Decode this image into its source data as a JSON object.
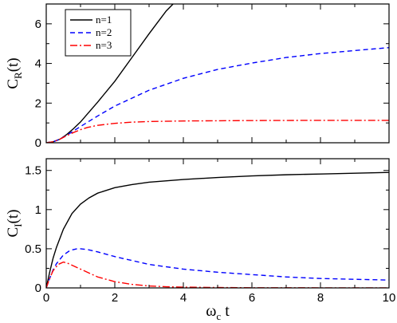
{
  "chart_data": [
    {
      "type": "line",
      "panel": "top",
      "ylabel": {
        "main": "C",
        "sub": "R",
        "suffix": "(t)"
      },
      "xlim": [
        0,
        10
      ],
      "ylim": [
        0,
        7
      ],
      "yticks": [
        0,
        2,
        4,
        6
      ],
      "xticks": [
        0,
        2,
        4,
        6,
        8,
        10
      ],
      "legend": {
        "placement": "top-left"
      },
      "series": [
        {
          "name": "n=1",
          "color": "#000000",
          "dash": "solid",
          "x": [
            0,
            0.2,
            0.4,
            0.6,
            0.8,
            1.0,
            1.2,
            1.5,
            2.0,
            2.5,
            3.0,
            3.5,
            3.7
          ],
          "y": [
            0,
            0.05,
            0.18,
            0.42,
            0.72,
            1.05,
            1.45,
            2.05,
            3.1,
            4.3,
            5.5,
            6.65,
            7.0
          ]
        },
        {
          "name": "n=2",
          "color": "#0000ff",
          "dash": "dashed",
          "x": [
            0,
            0.2,
            0.4,
            0.6,
            0.8,
            1.0,
            1.5,
            2.0,
            3.0,
            4.0,
            5.0,
            6.0,
            7.0,
            8.0,
            9.0,
            10.0
          ],
          "y": [
            0,
            0.05,
            0.18,
            0.38,
            0.6,
            0.82,
            1.35,
            1.85,
            2.65,
            3.25,
            3.7,
            4.02,
            4.3,
            4.5,
            4.65,
            4.8
          ]
        },
        {
          "name": "n=3",
          "color": "#ff0000",
          "dash": "dashdot",
          "x": [
            0,
            0.2,
            0.4,
            0.6,
            0.8,
            1.0,
            1.2,
            1.5,
            2.0,
            2.5,
            3.0,
            4.0,
            5.0,
            6.0,
            8.0,
            10.0
          ],
          "y": [
            0,
            0.05,
            0.18,
            0.36,
            0.52,
            0.66,
            0.77,
            0.88,
            0.98,
            1.04,
            1.07,
            1.1,
            1.11,
            1.12,
            1.13,
            1.13
          ]
        }
      ]
    },
    {
      "type": "line",
      "panel": "bottom",
      "ylabel": {
        "main": "C",
        "sub": "I",
        "suffix": "(t)"
      },
      "xlabel": {
        "main": "ω",
        "sub": "c",
        "suffix": " t"
      },
      "xlim": [
        0,
        10
      ],
      "ylim": [
        0,
        1.65
      ],
      "yticks": [
        0,
        0.5,
        1,
        1.5
      ],
      "xticks": [
        0,
        2,
        4,
        6,
        8,
        10
      ],
      "series": [
        {
          "name": "n=1",
          "color": "#000000",
          "dash": "solid",
          "x": [
            0,
            0.1,
            0.2,
            0.3,
            0.5,
            0.75,
            1.0,
            1.25,
            1.5,
            2.0,
            2.5,
            3.0,
            4.0,
            5.0,
            6.0,
            7.0,
            8.0,
            9.0,
            10.0
          ],
          "y": [
            0,
            0.2,
            0.38,
            0.52,
            0.75,
            0.95,
            1.07,
            1.15,
            1.21,
            1.28,
            1.32,
            1.35,
            1.385,
            1.41,
            1.43,
            1.445,
            1.455,
            1.465,
            1.475
          ]
        },
        {
          "name": "n=2",
          "color": "#0000ff",
          "dash": "dashed",
          "x": [
            0,
            0.1,
            0.2,
            0.3,
            0.5,
            0.7,
            0.9,
            1.0,
            1.2,
            1.5,
            2.0,
            2.5,
            3.0,
            4.0,
            5.0,
            6.0,
            7.0,
            8.0,
            9.0,
            10.0
          ],
          "y": [
            0,
            0.12,
            0.23,
            0.31,
            0.42,
            0.48,
            0.5,
            0.5,
            0.49,
            0.46,
            0.4,
            0.35,
            0.3,
            0.24,
            0.2,
            0.17,
            0.14,
            0.12,
            0.11,
            0.1
          ]
        },
        {
          "name": "n=3",
          "color": "#ff0000",
          "dash": "dashdot",
          "x": [
            0,
            0.1,
            0.2,
            0.35,
            0.5,
            0.6,
            0.75,
            1.0,
            1.25,
            1.5,
            2.0,
            2.5,
            3.0,
            3.5,
            4.0,
            5.0,
            6.0,
            8.0,
            10.0
          ],
          "y": [
            0,
            0.12,
            0.22,
            0.3,
            0.33,
            0.32,
            0.29,
            0.24,
            0.19,
            0.14,
            0.08,
            0.045,
            0.025,
            0.015,
            0.01,
            0.005,
            0.002,
            0.001,
            0
          ]
        }
      ]
    }
  ]
}
